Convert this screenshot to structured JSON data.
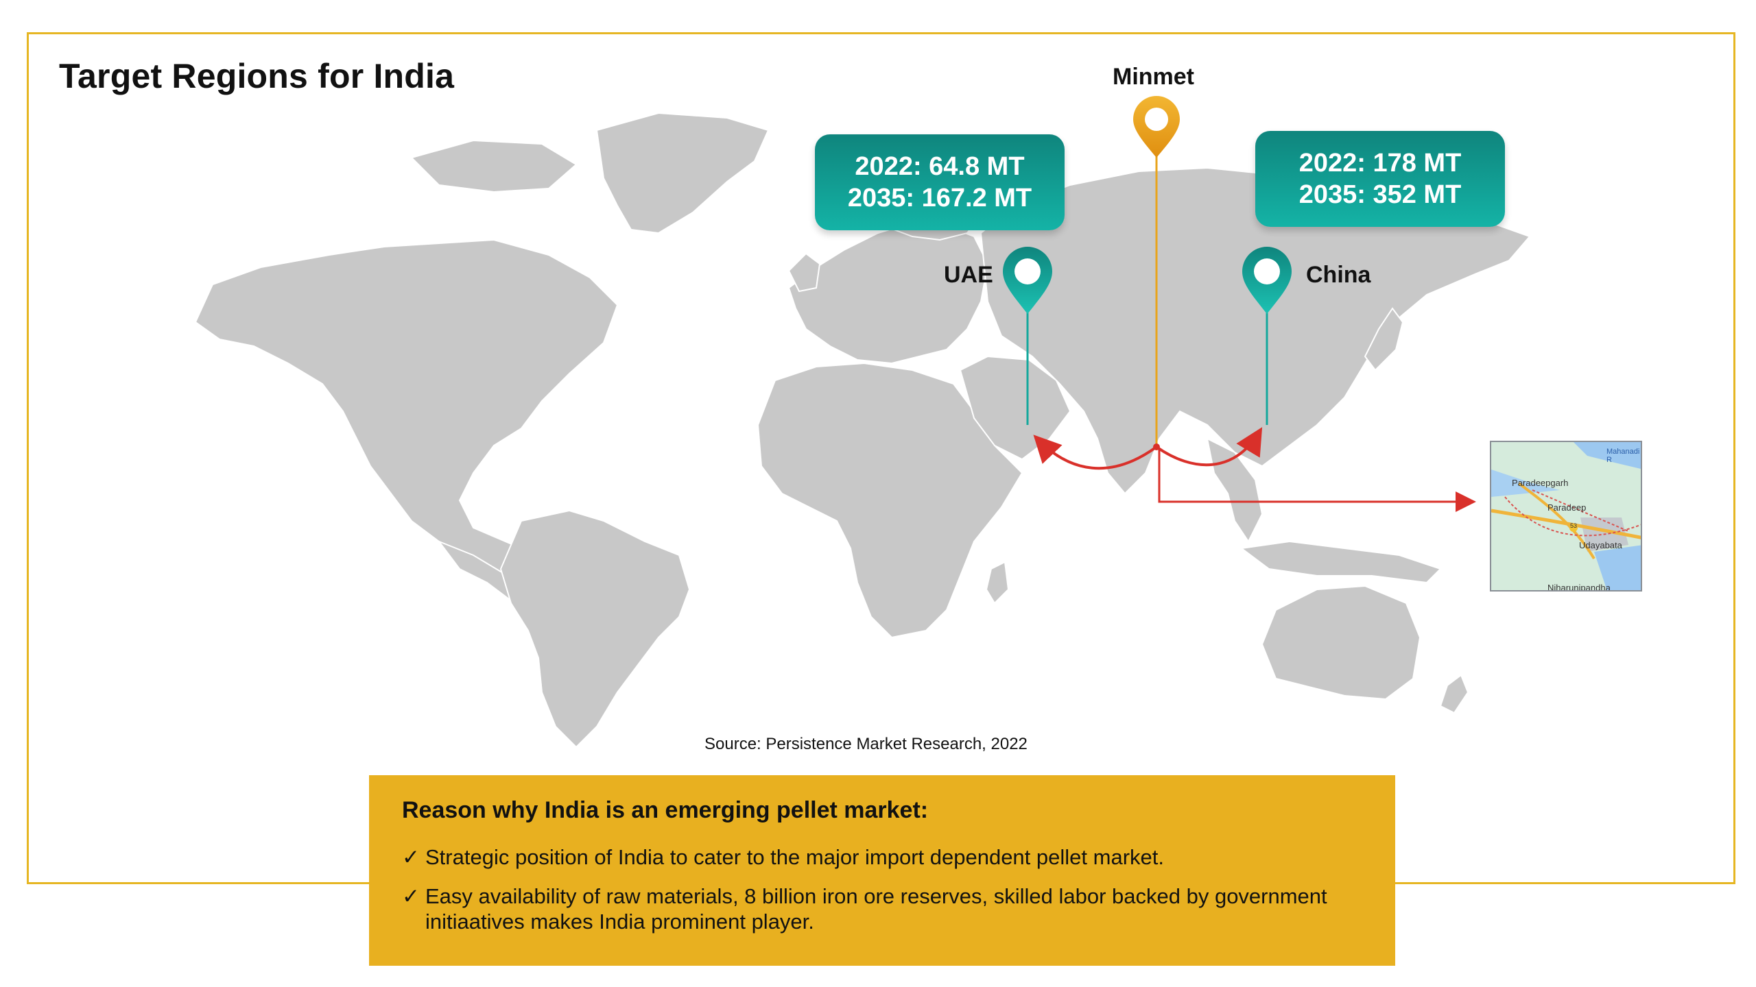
{
  "title": "Target Regions for India",
  "colors": {
    "land": "#c8c8c8",
    "teal": "#14a89d",
    "orange": "#e8a41d",
    "arrow": "#d9302a",
    "frame": "#e6b623",
    "reason_bg": "#e8b020"
  },
  "markers": {
    "uae": {
      "label": "UAE",
      "line_2022": "2022: 64.8 MT",
      "line_2035": "2035: 167.2 MT",
      "icon": "location-pin-icon"
    },
    "china": {
      "label": "China",
      "line_2022": "2022: 178 MT",
      "line_2035": "2035: 352 MT",
      "icon": "location-pin-icon"
    },
    "minmet": {
      "label": "Minmet",
      "icon": "location-pin-icon"
    }
  },
  "inset_map": {
    "places": [
      "Mahanadi R",
      "Paradeepgarh",
      "Paradeep",
      "53",
      "Udayabata",
      "Niharunipandha"
    ]
  },
  "source": "Source: Persistence Market Research, 2022",
  "reason": {
    "title": "Reason why India is an emerging pellet market:",
    "check_symbol": "✓",
    "items": [
      "Strategic position of India to cater to the major import dependent pellet market.",
      "Easy availability of raw materials, 8 billion iron ore reserves, skilled labor backed by government initiaatives makes India  prominent player."
    ]
  }
}
